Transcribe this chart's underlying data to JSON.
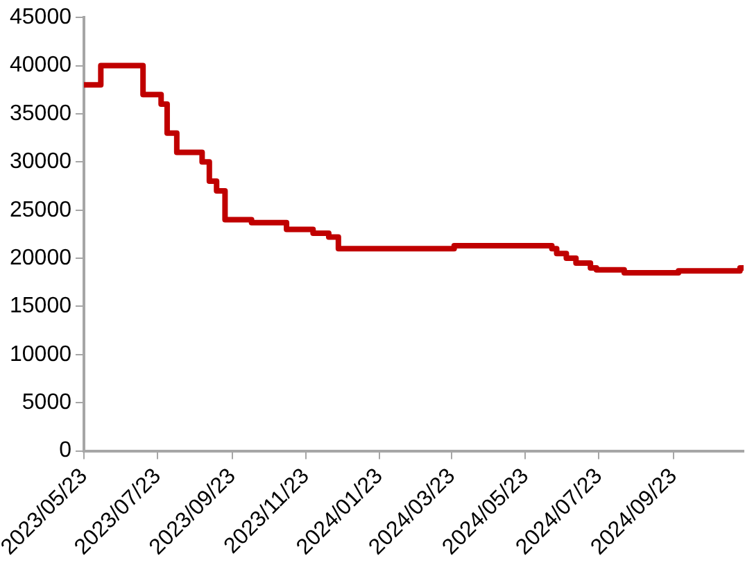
{
  "chart_data": {
    "type": "step",
    "color": "#c00000",
    "x": [
      "2023-05-23",
      "2023-06-06",
      "2023-07-11",
      "2023-07-26",
      "2023-07-31",
      "2023-08-08",
      "2023-08-29",
      "2023-09-04",
      "2023-09-10",
      "2023-09-17",
      "2023-10-09",
      "2023-11-07",
      "2023-11-29",
      "2023-12-12",
      "2023-12-20",
      "2024-03-25",
      "2024-06-14",
      "2024-06-18",
      "2024-06-26",
      "2024-07-04",
      "2024-07-16",
      "2024-07-21",
      "2024-08-13",
      "2024-09-27",
      "2024-11-17",
      "2024-11-20"
    ],
    "values": [
      38000,
      40000,
      37000,
      36000,
      33000,
      31000,
      30000,
      28000,
      27000,
      24000,
      23700,
      23000,
      22600,
      22200,
      21000,
      21300,
      21000,
      20500,
      20000,
      19500,
      19000,
      18800,
      18500,
      18700,
      19000,
      19000
    ],
    "xlim": [
      "2023-05-23",
      "2024-11-20"
    ],
    "xticks": [
      {
        "value": "2023-05-23",
        "label": "2023/05/23"
      },
      {
        "value": "2023-07-23",
        "label": "2023/07/23"
      },
      {
        "value": "2023-09-23",
        "label": "2023/09/23"
      },
      {
        "value": "2023-11-23",
        "label": "2023/11/23"
      },
      {
        "value": "2024-01-23",
        "label": "2024/01/23"
      },
      {
        "value": "2024-03-23",
        "label": "2024/03/23"
      },
      {
        "value": "2024-05-23",
        "label": "2024/05/23"
      },
      {
        "value": "2024-07-23",
        "label": "2024/07/23"
      },
      {
        "value": "2024-09-23",
        "label": "2024/09/23"
      }
    ],
    "ylim": [
      0,
      45000
    ],
    "yticks": [
      0,
      5000,
      10000,
      15000,
      20000,
      25000,
      30000,
      35000,
      40000,
      45000
    ],
    "grid": false,
    "legend": false,
    "marker": "none",
    "line_style": "solid"
  }
}
